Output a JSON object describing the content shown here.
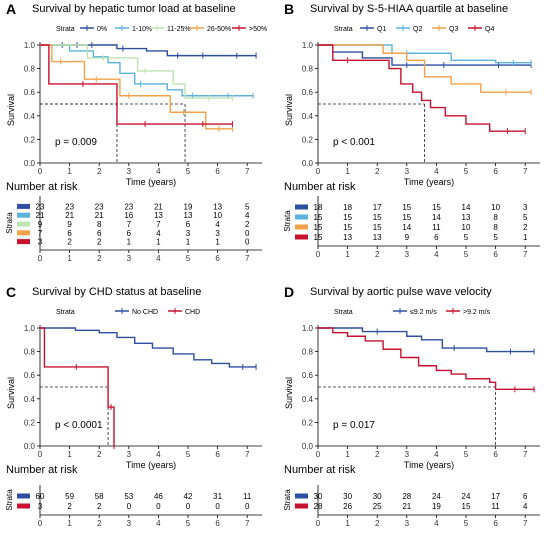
{
  "chart_data": [
    {
      "type": "line",
      "panel_letter": "A",
      "title": "Survival by hepatic tumor load at baseline",
      "legend_title": "Strata",
      "legend_position": "top",
      "xlabel": "Time (years)",
      "ylabel": "Survival",
      "xlim": [
        0,
        7.5
      ],
      "ylim": [
        0,
        1
      ],
      "x_ticks": [
        "0",
        "1",
        "2",
        "3",
        "4",
        "5",
        "6",
        "7"
      ],
      "y_ticks": [
        "0.0",
        "0.2",
        "0.4",
        "0.6",
        "0.8",
        "1.0"
      ],
      "p_value": "p = 0.009",
      "median_lines": [
        2.6,
        4.9
      ],
      "series": [
        {
          "name": "0%",
          "color": "#2c4fa2",
          "points": [
            [
              0,
              1
            ],
            [
              0.5,
              1
            ],
            [
              1,
              1
            ],
            [
              1.5,
              1
            ],
            [
              2,
              1
            ],
            [
              2.6,
              0.97
            ],
            [
              3,
              0.97
            ],
            [
              3.6,
              0.95
            ],
            [
              4.3,
              0.91
            ],
            [
              5,
              0.91
            ],
            [
              6,
              0.91
            ],
            [
              7.3,
              0.91
            ]
          ]
        },
        {
          "name": "1-10%",
          "color": "#5ab3df",
          "points": [
            [
              0,
              1
            ],
            [
              1,
              0.95
            ],
            [
              1.8,
              0.9
            ],
            [
              2.3,
              0.85
            ],
            [
              2.7,
              0.76
            ],
            [
              3.2,
              0.67
            ],
            [
              3.6,
              0.67
            ],
            [
              4.3,
              0.62
            ],
            [
              4.8,
              0.57
            ],
            [
              5.5,
              0.57
            ],
            [
              7.2,
              0.57
            ]
          ]
        },
        {
          "name": "11-25%",
          "color": "#bfe3b0",
          "points": [
            [
              0,
              1
            ],
            [
              1,
              1
            ],
            [
              1.6,
              0.89
            ],
            [
              2.7,
              0.89
            ],
            [
              3.3,
              0.78
            ],
            [
              3.8,
              0.78
            ],
            [
              4.5,
              0.67
            ],
            [
              4.9,
              0.55
            ],
            [
              6.5,
              0.55
            ]
          ]
        },
        {
          "name": "26-50%",
          "color": "#f2a148",
          "points": [
            [
              0,
              1
            ],
            [
              0.4,
              0.86
            ],
            [
              1,
              0.86
            ],
            [
              1.5,
              0.71
            ],
            [
              2.3,
              0.71
            ],
            [
              2.7,
              0.57
            ],
            [
              3.3,
              0.57
            ],
            [
              4.4,
              0.43
            ],
            [
              5.3,
              0.43
            ],
            [
              5.6,
              0.29
            ],
            [
              6.5,
              0.29
            ]
          ]
        },
        {
          "name": ">50%",
          "color": "#c8102e",
          "points": [
            [
              0,
              1
            ],
            [
              0.3,
              0.67
            ],
            [
              2.6,
              0.67
            ],
            [
              2.6,
              0.33
            ],
            [
              4.5,
              0.33
            ],
            [
              6.5,
              0.33
            ]
          ]
        }
      ],
      "risk_table": {
        "title": "Number at risk",
        "strata_label": "Strata",
        "times": [
          "0",
          "1",
          "2",
          "3",
          "4",
          "5",
          "6",
          "7"
        ],
        "rows": [
          [
            "23",
            "23",
            "23",
            "23",
            "21",
            "19",
            "13",
            "5"
          ],
          [
            "21",
            "21",
            "21",
            "16",
            "13",
            "13",
            "10",
            "4"
          ],
          [
            "9",
            "9",
            "8",
            "7",
            "7",
            "6",
            "4",
            "2"
          ],
          [
            "7",
            "6",
            "6",
            "6",
            "4",
            "3",
            "3",
            "0"
          ],
          [
            "3",
            "2",
            "2",
            "1",
            "1",
            "1",
            "1",
            "0"
          ]
        ]
      }
    },
    {
      "type": "line",
      "panel_letter": "B",
      "title": "Survival by S-5-HIAA quartile at baseline",
      "legend_title": "Strata",
      "legend_position": "top",
      "xlabel": "Time (years)",
      "ylabel": "Survival",
      "xlim": [
        0,
        7.5
      ],
      "ylim": [
        0,
        1
      ],
      "x_ticks": [
        "0",
        "1",
        "2",
        "3",
        "4",
        "5",
        "6",
        "7"
      ],
      "y_ticks": [
        "0.0",
        "0.2",
        "0.4",
        "0.6",
        "0.8",
        "1.0"
      ],
      "p_value": "p < 0.001",
      "median_lines": [
        3.6
      ],
      "series": [
        {
          "name": "Q1",
          "color": "#2c4fa2",
          "points": [
            [
              0,
              1
            ],
            [
              0.5,
              0.94
            ],
            [
              1.5,
              0.89
            ],
            [
              2.5,
              0.83
            ],
            [
              3.5,
              0.83
            ],
            [
              5,
              0.83
            ],
            [
              7.2,
              0.83
            ]
          ]
        },
        {
          "name": "Q2",
          "color": "#5ab3df",
          "points": [
            [
              0,
              1
            ],
            [
              2,
              1
            ],
            [
              2.5,
              0.93
            ],
            [
              3.5,
              0.93
            ],
            [
              4.5,
              0.87
            ],
            [
              6,
              0.85
            ],
            [
              7.2,
              0.85
            ]
          ]
        },
        {
          "name": "Q3",
          "color": "#f2a148",
          "points": [
            [
              0,
              1
            ],
            [
              1.5,
              1
            ],
            [
              2.2,
              0.93
            ],
            [
              3,
              0.87
            ],
            [
              3.6,
              0.73
            ],
            [
              4.5,
              0.67
            ],
            [
              5.5,
              0.6
            ],
            [
              7.2,
              0.6
            ]
          ]
        },
        {
          "name": "Q4",
          "color": "#c8102e",
          "points": [
            [
              0,
              1
            ],
            [
              0.5,
              0.87
            ],
            [
              1.5,
              0.87
            ],
            [
              2.4,
              0.8
            ],
            [
              2.8,
              0.67
            ],
            [
              3.2,
              0.6
            ],
            [
              3.5,
              0.53
            ],
            [
              3.8,
              0.47
            ],
            [
              4.3,
              0.4
            ],
            [
              5,
              0.33
            ],
            [
              5.8,
              0.27
            ],
            [
              7,
              0.27
            ]
          ]
        }
      ],
      "risk_table": {
        "title": "Number at risk",
        "strata_label": "Strata",
        "times": [
          "0",
          "1",
          "2",
          "3",
          "4",
          "5",
          "6",
          "7"
        ],
        "rows": [
          [
            "18",
            "18",
            "17",
            "15",
            "15",
            "14",
            "10",
            "3"
          ],
          [
            "15",
            "15",
            "15",
            "15",
            "14",
            "13",
            "8",
            "5"
          ],
          [
            "15",
            "15",
            "15",
            "14",
            "11",
            "10",
            "8",
            "2"
          ],
          [
            "15",
            "13",
            "13",
            "9",
            "6",
            "5",
            "5",
            "1"
          ]
        ]
      }
    },
    {
      "type": "line",
      "panel_letter": "C",
      "title": "Survival by CHD status at baseline",
      "legend_title": "Strata",
      "legend_position": "top",
      "xlabel": "Time (years)",
      "ylabel": "Survival",
      "xlim": [
        0,
        7.5
      ],
      "ylim": [
        0,
        1
      ],
      "x_ticks": [
        "0",
        "1",
        "2",
        "3",
        "4",
        "5",
        "6",
        "7"
      ],
      "y_ticks": [
        "0.0",
        "0.2",
        "0.4",
        "0.6",
        "0.8",
        "1.0"
      ],
      "p_value": "p < 0.0001",
      "median_lines": [
        2.3
      ],
      "series": [
        {
          "name": "No CHD",
          "color": "#2c4fa2",
          "points": [
            [
              0,
              1
            ],
            [
              0.6,
              1
            ],
            [
              1.2,
              0.98
            ],
            [
              2,
              0.96
            ],
            [
              2.6,
              0.92
            ],
            [
              3.2,
              0.87
            ],
            [
              3.8,
              0.83
            ],
            [
              4.5,
              0.78
            ],
            [
              5.2,
              0.73
            ],
            [
              5.8,
              0.7
            ],
            [
              6.4,
              0.67
            ],
            [
              7.3,
              0.67
            ]
          ]
        },
        {
          "name": "CHD",
          "color": "#c8102e",
          "points": [
            [
              0,
              1
            ],
            [
              0.15,
              1
            ],
            [
              0.15,
              0.67
            ],
            [
              2.3,
              0.67
            ],
            [
              2.3,
              0.33
            ],
            [
              2.5,
              0.33
            ],
            [
              2.5,
              0.0
            ]
          ]
        }
      ],
      "risk_table": {
        "title": "Number at risk",
        "strata_label": "Strata",
        "times": [
          "0",
          "1",
          "2",
          "3",
          "4",
          "5",
          "6",
          "7"
        ],
        "rows": [
          [
            "60",
            "59",
            "58",
            "53",
            "46",
            "42",
            "31",
            "11"
          ],
          [
            "3",
            "2",
            "2",
            "0",
            "0",
            "0",
            "0",
            "0"
          ]
        ]
      }
    },
    {
      "type": "line",
      "panel_letter": "D",
      "title": "Survival by aortic pulse wave velocity",
      "legend_title": "Strata",
      "legend_position": "top",
      "xlabel": "Time (years)",
      "ylabel": "Survival",
      "xlim": [
        0,
        7.5
      ],
      "ylim": [
        0,
        1
      ],
      "x_ticks": [
        "0",
        "1",
        "2",
        "3",
        "4",
        "5",
        "6",
        "7"
      ],
      "y_ticks": [
        "0.0",
        "0.2",
        "0.4",
        "0.6",
        "0.8",
        "1.0"
      ],
      "p_value": "p = 0.017",
      "median_lines": [
        6.0
      ],
      "series": [
        {
          "name": "≤9.2 m/s",
          "color": "#2c4fa2",
          "points": [
            [
              0,
              1
            ],
            [
              1,
              1
            ],
            [
              1.5,
              0.97
            ],
            [
              2.5,
              0.97
            ],
            [
              3,
              0.93
            ],
            [
              3.5,
              0.9
            ],
            [
              4.2,
              0.83
            ],
            [
              5,
              0.83
            ],
            [
              5.7,
              0.8
            ],
            [
              7.3,
              0.8
            ]
          ]
        },
        {
          "name": ">9.2 m/s",
          "color": "#c8102e",
          "points": [
            [
              0,
              1
            ],
            [
              0.5,
              0.96
            ],
            [
              1,
              0.93
            ],
            [
              1.6,
              0.89
            ],
            [
              2.2,
              0.82
            ],
            [
              2.8,
              0.75
            ],
            [
              3.4,
              0.68
            ],
            [
              4,
              0.64
            ],
            [
              4.5,
              0.61
            ],
            [
              5,
              0.57
            ],
            [
              5.8,
              0.54
            ],
            [
              6,
              0.48
            ],
            [
              7.3,
              0.48
            ]
          ]
        }
      ],
      "risk_table": {
        "title": "Number at risk",
        "strata_label": "Strata",
        "times": [
          "0",
          "1",
          "2",
          "3",
          "4",
          "5",
          "6",
          "7"
        ],
        "rows": [
          [
            "30",
            "30",
            "30",
            "28",
            "24",
            "24",
            "17",
            "6"
          ],
          [
            "28",
            "26",
            "25",
            "21",
            "19",
            "15",
            "11",
            "4"
          ]
        ]
      }
    }
  ]
}
